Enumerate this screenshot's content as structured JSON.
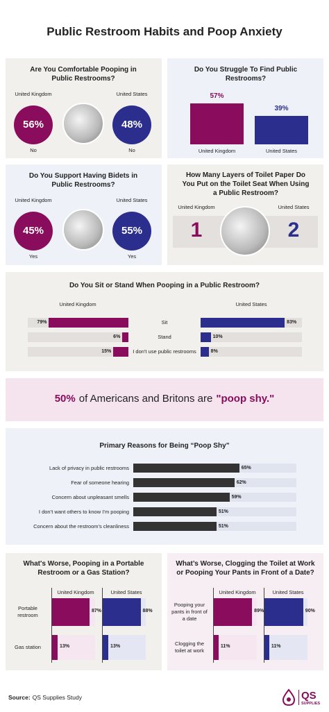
{
  "title": "Public Restroom Habits and Poop Anxiety",
  "comfortable": {
    "title": "Are You Comfortable Pooping in Public Restrooms?",
    "items": [
      {
        "country": "United Kingdom",
        "value_label": "56%",
        "answer": "No",
        "color": "#8a0c5c"
      },
      {
        "country": "United States",
        "value_label": "48%",
        "answer": "No",
        "color": "#2b2e8c"
      }
    ]
  },
  "struggle": {
    "type": "bar",
    "title": "Do You Struggle To Find Public Restrooms?",
    "categories": [
      "United Kingdom",
      "United States"
    ],
    "values": [
      57,
      39
    ],
    "value_labels": [
      "57%",
      "39%"
    ],
    "colors": [
      "#8a0c5c",
      "#2b2e8c"
    ]
  },
  "bidets": {
    "title": "Do You Support Having Bidets in Public Restrooms?",
    "items": [
      {
        "country": "United Kingdom",
        "value_label": "45%",
        "answer": "Yes",
        "color": "#8a0c5c"
      },
      {
        "country": "United States",
        "value_label": "55%",
        "answer": "Yes",
        "color": "#2b2e8c"
      }
    ]
  },
  "layers": {
    "title": "How Many Layers of Toilet Paper Do You Put on the Toilet Seat When Using a Public Restroom?",
    "items": [
      {
        "country": "United Kingdom",
        "value": 1,
        "color": "#8a0c5c"
      },
      {
        "country": "United States",
        "value": 2,
        "color": "#2b2e8c"
      }
    ]
  },
  "sit_stand": {
    "type": "bar",
    "title": "Do You Sit or Stand When Pooping in a Public Restroom?",
    "categories": [
      "Sit",
      "Stand",
      "I don't use public restrooms"
    ],
    "series": [
      {
        "name": "United Kingdom",
        "color": "#8a0c5c",
        "values": [
          79,
          6,
          15
        ],
        "value_labels": [
          "79%",
          "6%",
          "15%"
        ]
      },
      {
        "name": "United States",
        "color": "#2b2e8c",
        "values": [
          83,
          10,
          8
        ],
        "value_labels": [
          "83%",
          "10%",
          "8%"
        ]
      }
    ]
  },
  "banner": {
    "value_label": "50%",
    "text": "of Americans and Britons are",
    "highlight": "\"poop shy.\""
  },
  "reasons": {
    "type": "bar",
    "title": "Primary Reasons for Being “Poop Shy”",
    "categories": [
      "Lack of privacy in public restrooms",
      "Fear of someone hearing",
      "Concern about unpleasant smells",
      "I don’t want others to know I’m pooping",
      "Concern about the restroom’s cleanliness"
    ],
    "values": [
      65,
      62,
      59,
      51,
      51
    ],
    "value_labels": [
      "65%",
      "62%",
      "59%",
      "51%",
      "51%"
    ],
    "color": "#333333"
  },
  "portable": {
    "type": "bar",
    "title": "What's Worse, Pooping in a Portable Restroom or a Gas Station?",
    "categories": [
      "Portable restroom",
      "Gas station"
    ],
    "series": [
      {
        "name": "United Kingdom",
        "color": "#8a0c5c",
        "values": [
          87,
          13
        ],
        "value_labels": [
          "87%",
          "13%"
        ]
      },
      {
        "name": "United States",
        "color": "#2b2e8c",
        "values": [
          88,
          13
        ],
        "value_labels": [
          "88%",
          "13%"
        ]
      }
    ]
  },
  "clogging": {
    "type": "bar",
    "title": "What’s Worse, Clogging the Toilet at Work or Pooping Your Pants in Front of a Date?",
    "categories": [
      "Pooping your pants in front of a date",
      "Clogging the toilet at work"
    ],
    "series": [
      {
        "name": "United Kingdom",
        "color": "#8a0c5c",
        "values": [
          89,
          11
        ],
        "value_labels": [
          "89%",
          "11%"
        ]
      },
      {
        "name": "United States",
        "color": "#2b2e8c",
        "values": [
          90,
          11
        ],
        "value_labels": [
          "90%",
          "11%"
        ]
      }
    ]
  },
  "source": {
    "label": "Source:",
    "text": "QS Supplies Study"
  },
  "logo": {
    "name": "QS",
    "sub": "SUPPLIES"
  }
}
